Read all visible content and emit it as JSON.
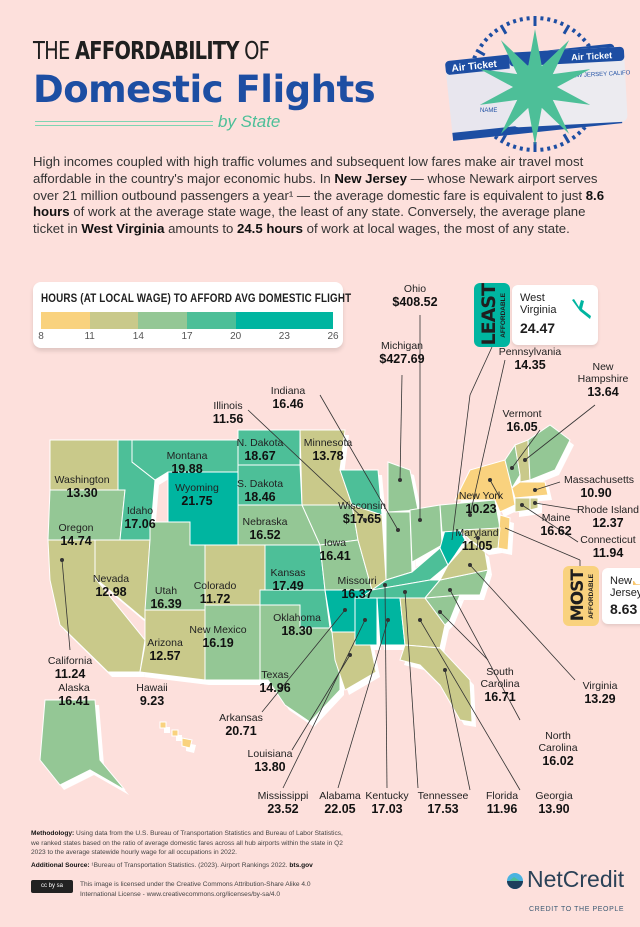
{
  "header": {
    "title_prefix": "THE",
    "title_bold": "AFFORDABILITY",
    "title_suffix": "OF",
    "title_main": "Domestic Flights",
    "subtitle": "by State",
    "ticket_art": {
      "ticket_label": "Air Ticket",
      "route": "NEW JERSEY CALIFORNIA",
      "name_field": "NAME"
    }
  },
  "intro": {
    "p1": "High incomes coupled with high traffic volumes and subsequent low fares make air travel most affordable in the country's major economic hubs. In ",
    "b1": "New Jersey",
    "p2": " — whose Newark airport serves over 21 million outbound passengers a year¹ — the average domestic fare is equivalent to just ",
    "b2": "8.6 hours",
    "p3": " of work at the average state wage, the least of any state. Conversely, the average plane ticket in ",
    "b3": "West Virginia",
    "p4": " amounts to ",
    "b4": "24.5 hours",
    "p5": " of work at local wages, the most of any state."
  },
  "legend": {
    "title": "HOURS (AT LOCAL WAGE) TO AFFORD AVG DOMESTIC FLIGHT",
    "ticks": [
      "8",
      "11",
      "14",
      "17",
      "20",
      "23",
      "26"
    ],
    "bins": [
      {
        "min": 8,
        "max": 11,
        "color": "#f9d27e"
      },
      {
        "min": 11,
        "max": 14,
        "color": "#c9c98a"
      },
      {
        "min": 14,
        "max": 17,
        "color": "#94c795"
      },
      {
        "min": 17,
        "max": 20,
        "color": "#4dbf98"
      },
      {
        "min": 20,
        "max": 26,
        "color": "#00b5a0"
      }
    ]
  },
  "callouts": {
    "least": {
      "big": "LEAST",
      "small": "AFFORDABLE",
      "state": "West Virginia",
      "value": "24.47",
      "color": "#00b5a0"
    },
    "most": {
      "big": "MOST",
      "small": "AFFORDABLE",
      "state": "New Jersey",
      "value": "8.63",
      "color": "#f9d27e"
    }
  },
  "states": [
    {
      "name": "Washington",
      "value": "13.30"
    },
    {
      "name": "Oregon",
      "value": "14.74"
    },
    {
      "name": "California",
      "value": "11.24"
    },
    {
      "name": "Nevada",
      "value": "12.98"
    },
    {
      "name": "Idaho",
      "value": "17.06"
    },
    {
      "name": "Montana",
      "value": "19.88"
    },
    {
      "name": "Wyoming",
      "value": "21.75"
    },
    {
      "name": "Utah",
      "value": "16.39"
    },
    {
      "name": "Colorado",
      "value": "11.72"
    },
    {
      "name": "Arizona",
      "value": "12.57"
    },
    {
      "name": "New Mexico",
      "value": "16.19"
    },
    {
      "name": "N. Dakota",
      "value": "18.67"
    },
    {
      "name": "S. Dakota",
      "value": "18.46"
    },
    {
      "name": "Nebraska",
      "value": "16.52"
    },
    {
      "name": "Kansas",
      "value": "17.49"
    },
    {
      "name": "Oklahoma",
      "value": "18.30"
    },
    {
      "name": "Texas",
      "value": "14.96"
    },
    {
      "name": "Minnesota",
      "value": "13.78"
    },
    {
      "name": "Iowa",
      "value": "16.41"
    },
    {
      "name": "Missouri",
      "value": "16.37"
    },
    {
      "name": "Arkansas",
      "value": "20.71"
    },
    {
      "name": "Louisiana",
      "value": "13.80"
    },
    {
      "name": "Wisconsin",
      "value": "$17.65"
    },
    {
      "name": "Illinois",
      "value": "11.56"
    },
    {
      "name": "Michigan",
      "value": "$427.69"
    },
    {
      "name": "Indiana",
      "value": "16.46"
    },
    {
      "name": "Ohio",
      "value": "$408.52"
    },
    {
      "name": "Kentucky",
      "value": "17.03"
    },
    {
      "name": "Tennessee",
      "value": "17.53"
    },
    {
      "name": "Mississippi",
      "value": "23.52"
    },
    {
      "name": "Alabama",
      "value": "22.05"
    },
    {
      "name": "Georgia",
      "value": "13.90"
    },
    {
      "name": "Florida",
      "value": "11.96"
    },
    {
      "name": "South Carolina",
      "value": "16.71"
    },
    {
      "name": "North Carolina",
      "value": "16.02"
    },
    {
      "name": "Virginia",
      "value": "13.29"
    },
    {
      "name": "West Virginia",
      "value": "24.47"
    },
    {
      "name": "Pennsylvania",
      "value": "14.35"
    },
    {
      "name": "New York",
      "value": "10.23"
    },
    {
      "name": "New Jersey",
      "value": "8.63"
    },
    {
      "name": "Maryland",
      "value": "11.05"
    },
    {
      "name": "Vermont",
      "value": "16.05"
    },
    {
      "name": "New Hampshire",
      "value": "13.64"
    },
    {
      "name": "Maine",
      "value": "16.62"
    },
    {
      "name": "Massachusetts",
      "value": "10.90"
    },
    {
      "name": "Connecticut",
      "value": "11.94"
    },
    {
      "name": "Rhode Island",
      "value": "12.37"
    },
    {
      "name": "Alaska",
      "value": "16.41"
    },
    {
      "name": "Hawaii",
      "value": "9.23"
    }
  ],
  "footer": {
    "methodology_label": "Methodology:",
    "methodology": " Using data from the U.S. Bureau of Transportation Statistics and Bureau of Labor Statistics, we ranked states based on the ratio of average domestic fares across all hub airports within the state in Q2 2023 to the average statewide hourly wage for all occupations in 2022.",
    "source_label": "Additional Source:",
    "source": " ¹Bureau of Transportation Statistics. (2023). Airport Rankings 2022. ",
    "source_link": "bts.gov",
    "license": "This image is licensed under the Creative Commons Attribution-Share Alike 4.0 International License - www.creativecommons.org/licenses/by-sa/4.0",
    "license_badge": "cc by sa",
    "brand": "NetCredit",
    "tagline": "CREDIT TO THE PEOPLE"
  }
}
